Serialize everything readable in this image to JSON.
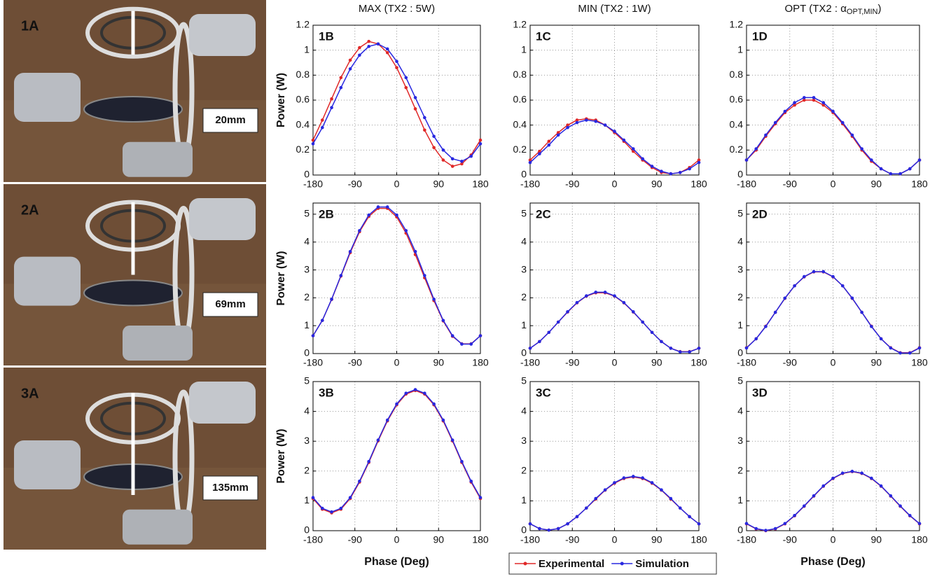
{
  "photos": [
    {
      "label": "1A",
      "distance": "20mm"
    },
    {
      "label": "2A",
      "distance": "69mm"
    },
    {
      "label": "3A",
      "distance": "135mm"
    }
  ],
  "chart_data": [
    {
      "type": "line",
      "label": "1B",
      "title": "MAX (TX2 : 5W)",
      "ylabel": "Power (W)",
      "x": [
        -180,
        -160,
        -140,
        -120,
        -100,
        -80,
        -60,
        -40,
        -20,
        0,
        20,
        40,
        60,
        80,
        100,
        120,
        140,
        160,
        180
      ],
      "xlim": [
        -180,
        180
      ],
      "xticks": [
        -180,
        -90,
        0,
        90,
        180
      ],
      "ylim": [
        0,
        1.2
      ],
      "yticks": [
        0,
        0.2,
        0.4,
        0.6,
        0.8,
        1,
        1.2
      ],
      "grid": true,
      "series": [
        {
          "name": "Experimental",
          "color": "#e02828",
          "values": [
            0.28,
            0.44,
            0.61,
            0.78,
            0.92,
            1.02,
            1.07,
            1.05,
            0.98,
            0.86,
            0.7,
            0.53,
            0.36,
            0.22,
            0.12,
            0.07,
            0.09,
            0.16,
            0.28
          ]
        },
        {
          "name": "Simulation",
          "color": "#2828e0",
          "values": [
            0.25,
            0.38,
            0.54,
            0.7,
            0.85,
            0.96,
            1.03,
            1.05,
            1.01,
            0.91,
            0.78,
            0.62,
            0.46,
            0.31,
            0.2,
            0.13,
            0.11,
            0.15,
            0.25
          ]
        }
      ]
    },
    {
      "type": "line",
      "label": "1C",
      "title": "MIN (TX2 : 1W)",
      "x": [
        -180,
        -160,
        -140,
        -120,
        -100,
        -80,
        -60,
        -40,
        -20,
        0,
        20,
        40,
        60,
        80,
        100,
        120,
        140,
        160,
        180
      ],
      "xlim": [
        -180,
        180
      ],
      "xticks": [
        -180,
        -90,
        0,
        90,
        180
      ],
      "ylim": [
        0,
        1.2
      ],
      "yticks": [
        0,
        0.2,
        0.4,
        0.6,
        0.8,
        1,
        1.2
      ],
      "grid": true,
      "series": [
        {
          "name": "Experimental",
          "color": "#e02828",
          "values": [
            0.12,
            0.19,
            0.27,
            0.34,
            0.4,
            0.44,
            0.45,
            0.44,
            0.4,
            0.34,
            0.27,
            0.19,
            0.12,
            0.06,
            0.02,
            0.01,
            0.02,
            0.06,
            0.12
          ]
        },
        {
          "name": "Simulation",
          "color": "#2828e0",
          "values": [
            0.1,
            0.17,
            0.24,
            0.32,
            0.38,
            0.42,
            0.44,
            0.43,
            0.4,
            0.35,
            0.28,
            0.21,
            0.13,
            0.07,
            0.03,
            0.01,
            0.02,
            0.05,
            0.1
          ]
        }
      ]
    },
    {
      "type": "line",
      "label": "1D",
      "title": "OPT (TX2 : α",
      "title_sub": "OPT,MIN",
      "title_end": ")",
      "x": [
        -180,
        -160,
        -140,
        -120,
        -100,
        -80,
        -60,
        -40,
        -20,
        0,
        20,
        40,
        60,
        80,
        100,
        120,
        140,
        160,
        180
      ],
      "xlim": [
        -180,
        180
      ],
      "xticks": [
        -180,
        -90,
        0,
        90,
        180
      ],
      "ylim": [
        0,
        1.2
      ],
      "yticks": [
        0,
        0.2,
        0.4,
        0.6,
        0.8,
        1,
        1.2
      ],
      "grid": true,
      "series": [
        {
          "name": "Experimental",
          "color": "#e02828",
          "values": [
            0.12,
            0.2,
            0.31,
            0.41,
            0.5,
            0.56,
            0.6,
            0.6,
            0.56,
            0.5,
            0.41,
            0.31,
            0.2,
            0.11,
            0.05,
            0.01,
            0.01,
            0.05,
            0.12
          ]
        },
        {
          "name": "Simulation",
          "color": "#2828e0",
          "values": [
            0.12,
            0.21,
            0.32,
            0.42,
            0.51,
            0.58,
            0.62,
            0.62,
            0.58,
            0.51,
            0.42,
            0.32,
            0.21,
            0.12,
            0.05,
            0.01,
            0.01,
            0.05,
            0.12
          ]
        }
      ]
    },
    {
      "type": "line",
      "label": "2B",
      "ylabel": "Power (W)",
      "x": [
        -180,
        -160,
        -140,
        -120,
        -100,
        -80,
        -60,
        -40,
        -20,
        0,
        20,
        40,
        60,
        80,
        100,
        120,
        140,
        160,
        180
      ],
      "xlim": [
        -180,
        180
      ],
      "xticks": [
        -180,
        -90,
        0,
        90,
        180
      ],
      "ylim": [
        0,
        5.4
      ],
      "yticks": [
        0,
        1,
        2,
        3,
        4,
        5
      ],
      "grid": true,
      "series": [
        {
          "name": "Experimental",
          "color": "#e02828",
          "values": [
            0.64,
            1.19,
            1.94,
            2.78,
            3.62,
            4.37,
            4.92,
            5.21,
            5.21,
            4.9,
            4.32,
            3.55,
            2.72,
            1.9,
            1.17,
            0.62,
            0.35,
            0.35,
            0.64
          ]
        },
        {
          "name": "Simulation",
          "color": "#2828e0",
          "values": [
            0.64,
            1.19,
            1.95,
            2.8,
            3.66,
            4.41,
            4.97,
            5.26,
            5.26,
            4.97,
            4.41,
            3.66,
            2.8,
            1.95,
            1.19,
            0.64,
            0.34,
            0.34,
            0.64
          ]
        }
      ]
    },
    {
      "type": "line",
      "label": "2C",
      "x": [
        -180,
        -160,
        -140,
        -120,
        -100,
        -80,
        -60,
        -40,
        -20,
        0,
        20,
        40,
        60,
        80,
        100,
        120,
        140,
        160,
        180
      ],
      "xlim": [
        -180,
        180
      ],
      "xticks": [
        -180,
        -90,
        0,
        90,
        180
      ],
      "ylim": [
        0,
        5.4
      ],
      "yticks": [
        0,
        1,
        2,
        3,
        4,
        5
      ],
      "grid": true,
      "series": [
        {
          "name": "Experimental",
          "color": "#e02828",
          "values": [
            0.19,
            0.43,
            0.76,
            1.13,
            1.49,
            1.82,
            2.06,
            2.18,
            2.18,
            2.06,
            1.82,
            1.49,
            1.13,
            0.76,
            0.43,
            0.19,
            0.07,
            0.07,
            0.19
          ]
        },
        {
          "name": "Simulation",
          "color": "#2828e0",
          "values": [
            0.19,
            0.43,
            0.76,
            1.13,
            1.5,
            1.83,
            2.07,
            2.2,
            2.2,
            2.07,
            1.83,
            1.5,
            1.13,
            0.76,
            0.43,
            0.19,
            0.06,
            0.06,
            0.19
          ]
        }
      ]
    },
    {
      "type": "line",
      "label": "2D",
      "x": [
        -180,
        -160,
        -140,
        -120,
        -100,
        -80,
        -60,
        -40,
        -20,
        0,
        20,
        40,
        60,
        80,
        100,
        120,
        140,
        160,
        180
      ],
      "xlim": [
        -180,
        180
      ],
      "xticks": [
        -180,
        -90,
        0,
        90,
        180
      ],
      "ylim": [
        0,
        5.4
      ],
      "yticks": [
        0,
        1,
        2,
        3,
        4,
        5
      ],
      "grid": true,
      "series": [
        {
          "name": "Experimental",
          "color": "#e02828",
          "values": [
            0.21,
            0.53,
            0.98,
            1.48,
            1.98,
            2.43,
            2.75,
            2.93,
            2.93,
            2.75,
            2.43,
            1.98,
            1.48,
            0.98,
            0.53,
            0.21,
            0.03,
            0.03,
            0.21
          ]
        },
        {
          "name": "Simulation",
          "color": "#2828e0",
          "values": [
            0.2,
            0.53,
            0.97,
            1.48,
            1.99,
            2.43,
            2.76,
            2.94,
            2.94,
            2.76,
            2.43,
            1.99,
            1.48,
            0.97,
            0.53,
            0.2,
            0.02,
            0.02,
            0.2
          ]
        }
      ]
    },
    {
      "type": "line",
      "label": "3B",
      "ylabel": "Power (W)",
      "xlabel": "Phase (Deg)",
      "x": [
        -180,
        -160,
        -140,
        -120,
        -100,
        -80,
        -60,
        -40,
        -20,
        0,
        20,
        40,
        60,
        80,
        100,
        120,
        140,
        160,
        180
      ],
      "xlim": [
        -180,
        180
      ],
      "xticks": [
        -180,
        -90,
        0,
        90,
        180
      ],
      "ylim": [
        0,
        5
      ],
      "yticks": [
        0,
        1,
        2,
        3,
        4,
        5
      ],
      "grid": true,
      "series": [
        {
          "name": "Experimental",
          "color": "#e02828",
          "values": [
            1.08,
            0.72,
            0.6,
            0.72,
            1.08,
            1.63,
            2.29,
            3.01,
            3.68,
            4.22,
            4.58,
            4.7,
            4.58,
            4.22,
            3.68,
            3.01,
            2.29,
            1.63,
            1.08
          ]
        },
        {
          "name": "Simulation",
          "color": "#2828e0",
          "values": [
            1.11,
            0.75,
            0.63,
            0.75,
            1.11,
            1.66,
            2.32,
            3.04,
            3.71,
            4.25,
            4.61,
            4.73,
            4.61,
            4.25,
            3.71,
            3.04,
            2.32,
            1.66,
            1.11
          ]
        }
      ]
    },
    {
      "type": "line",
      "label": "3C",
      "legend": "bottom",
      "x": [
        -180,
        -160,
        -140,
        -120,
        -100,
        -80,
        -60,
        -40,
        -20,
        0,
        20,
        40,
        60,
        80,
        100,
        120,
        140,
        160,
        180
      ],
      "xlim": [
        -180,
        180
      ],
      "xticks": [
        -180,
        -90,
        0,
        90,
        180
      ],
      "ylim": [
        0,
        5
      ],
      "yticks": [
        0,
        1,
        2,
        3,
        4,
        5
      ],
      "grid": true,
      "series": [
        {
          "name": "Experimental",
          "color": "#e02828",
          "values": [
            0.23,
            0.07,
            0.02,
            0.07,
            0.23,
            0.47,
            0.76,
            1.06,
            1.36,
            1.59,
            1.75,
            1.8,
            1.75,
            1.59,
            1.36,
            1.06,
            0.76,
            0.47,
            0.23
          ]
        },
        {
          "name": "Simulation",
          "color": "#2828e0",
          "values": [
            0.23,
            0.07,
            0.02,
            0.07,
            0.23,
            0.47,
            0.76,
            1.08,
            1.37,
            1.61,
            1.77,
            1.82,
            1.77,
            1.61,
            1.37,
            1.08,
            0.76,
            0.47,
            0.23
          ]
        }
      ]
    },
    {
      "type": "line",
      "label": "3D",
      "xlabel": "Phase (Deg)",
      "x": [
        -180,
        -160,
        -140,
        -120,
        -100,
        -80,
        -60,
        -40,
        -20,
        0,
        20,
        40,
        60,
        80,
        100,
        120,
        140,
        160,
        180
      ],
      "xlim": [
        -180,
        180
      ],
      "xticks": [
        -180,
        -90,
        0,
        90,
        180
      ],
      "ylim": [
        0,
        5
      ],
      "yticks": [
        0,
        1,
        2,
        3,
        4,
        5
      ],
      "grid": true,
      "series": [
        {
          "name": "Experimental",
          "color": "#e02828",
          "values": [
            0.23,
            0.06,
            0,
            0.06,
            0.23,
            0.5,
            0.82,
            1.16,
            1.49,
            1.75,
            1.92,
            1.98,
            1.92,
            1.75,
            1.49,
            1.16,
            0.82,
            0.5,
            0.23
          ]
        },
        {
          "name": "Simulation",
          "color": "#2828e0",
          "values": [
            0.24,
            0.07,
            0.01,
            0.07,
            0.24,
            0.51,
            0.83,
            1.17,
            1.5,
            1.76,
            1.93,
            1.99,
            1.93,
            1.76,
            1.5,
            1.17,
            0.83,
            0.51,
            0.24
          ]
        }
      ]
    }
  ]
}
